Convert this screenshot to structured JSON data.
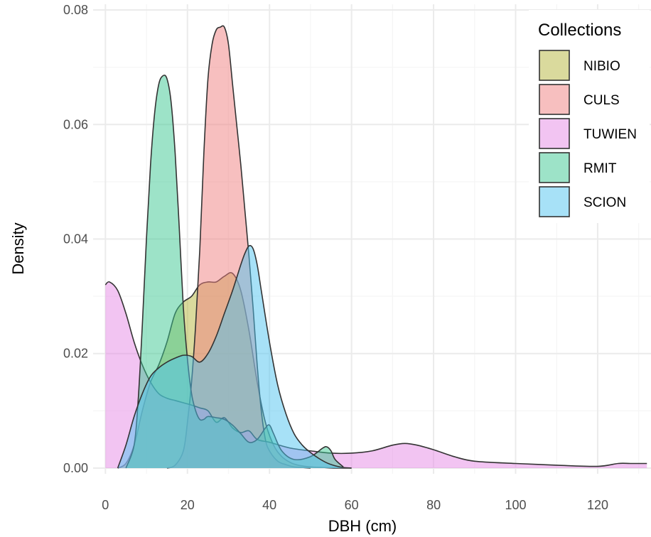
{
  "chart_data": {
    "type": "area",
    "title": "",
    "xlabel": "DBH (cm)",
    "ylabel": "Density",
    "xlim": [
      -3,
      133
    ],
    "ylim": [
      -0.001,
      0.081
    ],
    "x_ticks": [
      0,
      20,
      40,
      60,
      80,
      100,
      120
    ],
    "y_ticks": [
      0.0,
      0.02,
      0.04,
      0.06,
      0.08
    ],
    "x_tick_labels": [
      "0",
      "20",
      "40",
      "60",
      "80",
      "100",
      "120"
    ],
    "y_tick_labels": [
      "0.00",
      "0.02",
      "0.04",
      "0.06",
      "0.08"
    ],
    "grid": true,
    "legend": {
      "title": "Collections",
      "position": "top-right"
    },
    "series": [
      {
        "name": "NIBIO",
        "color": "#b5b53c",
        "x": [
          3,
          5,
          7,
          9,
          11,
          13,
          15,
          17,
          19,
          21,
          23,
          25,
          27,
          29,
          31,
          33,
          35,
          37,
          39,
          41,
          43,
          45,
          47,
          50,
          53,
          56,
          60
        ],
        "y": [
          0,
          0.0008,
          0.004,
          0.01,
          0.015,
          0.018,
          0.022,
          0.027,
          0.029,
          0.03,
          0.032,
          0.0325,
          0.0325,
          0.0335,
          0.034,
          0.031,
          0.024,
          0.015,
          0.008,
          0.004,
          0.002,
          0.001,
          0.0005,
          0.0002,
          0.0001,
          0,
          0
        ]
      },
      {
        "name": "CULS",
        "color": "#f08080",
        "x": [
          15,
          17,
          19,
          20,
          21,
          22,
          23,
          24,
          25,
          26,
          27,
          28,
          29,
          30,
          31,
          32,
          33,
          34,
          35,
          36,
          37,
          38,
          39,
          40,
          42,
          44,
          46,
          48,
          50
        ],
        "y": [
          0,
          0.0005,
          0.003,
          0.008,
          0.015,
          0.025,
          0.038,
          0.055,
          0.068,
          0.074,
          0.0765,
          0.077,
          0.077,
          0.074,
          0.067,
          0.06,
          0.053,
          0.045,
          0.037,
          0.028,
          0.018,
          0.01,
          0.005,
          0.003,
          0.0012,
          0.0006,
          0.0002,
          0.0001,
          0
        ]
      },
      {
        "name": "TUWIEN",
        "color": "#e68ae6",
        "x": [
          0,
          1,
          3,
          5,
          7,
          9,
          11,
          13,
          15,
          17,
          19,
          21,
          23,
          25,
          27,
          29,
          31,
          33,
          35,
          37,
          40,
          45,
          50,
          55,
          60,
          65,
          70,
          73,
          76,
          80,
          85,
          90,
          100,
          110,
          120,
          125,
          128,
          132
        ],
        "y": [
          0.032,
          0.0325,
          0.031,
          0.027,
          0.022,
          0.018,
          0.015,
          0.013,
          0.0122,
          0.0118,
          0.0114,
          0.011,
          0.0105,
          0.01,
          0.008,
          0.0088,
          0.007,
          0.0062,
          0.0065,
          0.005,
          0.0045,
          0.0035,
          0.003,
          0.0026,
          0.0026,
          0.003,
          0.004,
          0.0043,
          0.004,
          0.0032,
          0.002,
          0.0012,
          0.0008,
          0.0005,
          0.0003,
          0.0008,
          0.0008,
          0.0008
        ]
      },
      {
        "name": "RMIT",
        "color": "#3cc891",
        "x": [
          5,
          7,
          8,
          9,
          10,
          11,
          12,
          13,
          14,
          15,
          16,
          17,
          18,
          19,
          20,
          21,
          22,
          23,
          24,
          25,
          27,
          29,
          31,
          33,
          35,
          37,
          39,
          40,
          41,
          43,
          46,
          50,
          53,
          54,
          55,
          56,
          58
        ],
        "y": [
          0,
          0.004,
          0.012,
          0.025,
          0.04,
          0.053,
          0.062,
          0.067,
          0.0685,
          0.068,
          0.064,
          0.055,
          0.042,
          0.028,
          0.019,
          0.013,
          0.01,
          0.0085,
          0.0085,
          0.009,
          0.0088,
          0.0085,
          0.0075,
          0.006,
          0.0045,
          0.005,
          0.007,
          0.0075,
          0.006,
          0.003,
          0.0015,
          0.002,
          0.0035,
          0.0037,
          0.003,
          0.0015,
          0.0002
        ]
      },
      {
        "name": "SCION",
        "color": "#4fc4f0",
        "x": [
          3,
          5,
          7,
          9,
          11,
          13,
          15,
          17,
          19,
          21,
          23,
          25,
          27,
          29,
          31,
          33,
          34,
          35,
          36,
          37,
          38,
          40,
          42,
          44,
          46,
          48,
          50,
          52,
          54,
          56,
          58,
          60
        ],
        "y": [
          0,
          0.004,
          0.009,
          0.013,
          0.016,
          0.0175,
          0.0185,
          0.0192,
          0.0197,
          0.0195,
          0.0185,
          0.02,
          0.023,
          0.027,
          0.031,
          0.0355,
          0.0375,
          0.0388,
          0.0383,
          0.0355,
          0.031,
          0.022,
          0.0145,
          0.0095,
          0.006,
          0.004,
          0.0027,
          0.0017,
          0.0009,
          0.0004,
          0.0001,
          0
        ]
      }
    ]
  }
}
